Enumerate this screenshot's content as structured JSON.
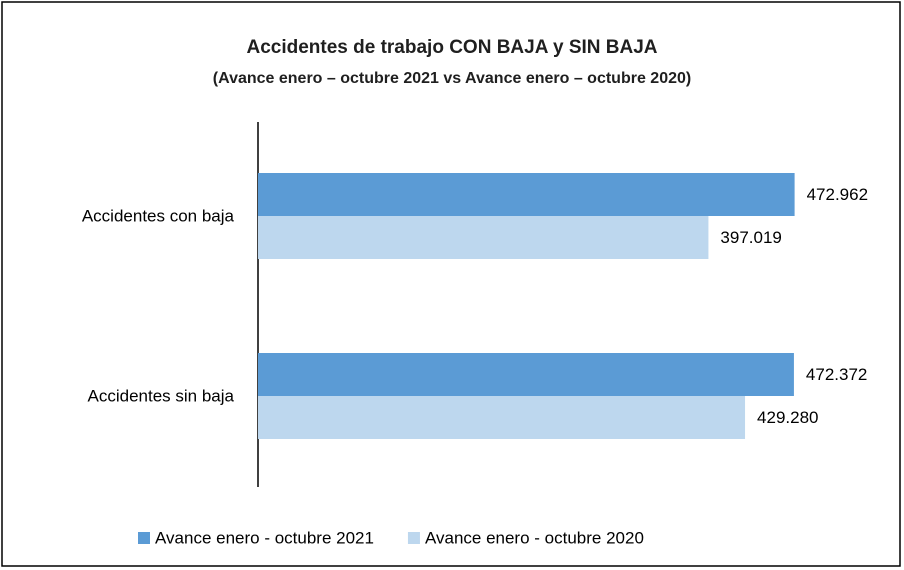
{
  "chart_data": {
    "type": "bar",
    "orientation": "horizontal",
    "title": "Accidentes de trabajo CON BAJA y SIN BAJA",
    "subtitle": "(Avance enero – octubre 2021 vs Avance enero – octubre 2020)",
    "categories": [
      "Accidentes con baja",
      "Accidentes sin baja"
    ],
    "series": [
      {
        "name": "Avance enero - octubre 2021",
        "color": "#5b9bd5",
        "values": [
          472962,
          472372
        ],
        "value_labels": [
          "472.962",
          "472.372"
        ]
      },
      {
        "name": "Avance enero - octubre 2020",
        "color": "#bdd7ee",
        "values": [
          397019,
          429280
        ],
        "value_labels": [
          "397.019",
          "429.280"
        ]
      }
    ],
    "xlim": [
      0,
      550000
    ],
    "legend": "bottom"
  }
}
